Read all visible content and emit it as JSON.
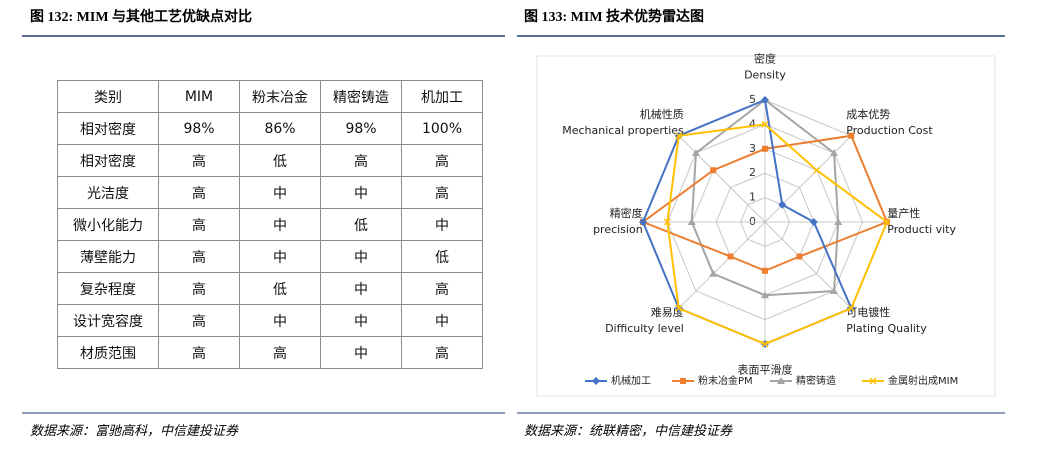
{
  "left": {
    "title": "图 132: MIM 与其他工艺优缺点对比",
    "table": {
      "header": [
        "类别",
        "MIM",
        "粉末冶金",
        "精密铸造",
        "机加工"
      ],
      "rows": [
        [
          "相对密度",
          "98%",
          "86%",
          "98%",
          "100%"
        ],
        [
          "相对密度",
          "高",
          "低",
          "高",
          "高"
        ],
        [
          "光洁度",
          "高",
          "中",
          "中",
          "高"
        ],
        [
          "微小化能力",
          "高",
          "中",
          "低",
          "中"
        ],
        [
          "薄壁能力",
          "高",
          "中",
          "中",
          "低"
        ],
        [
          "复杂程度",
          "高",
          "低",
          "中",
          "高"
        ],
        [
          "设计宽容度",
          "高",
          "中",
          "中",
          "中"
        ],
        [
          "材质范围",
          "高",
          "高",
          "中",
          "高"
        ]
      ]
    },
    "source": "数据来源：富驰高科，中信建投证券"
  },
  "right": {
    "title": "图 133: MIM 技术优势雷达图",
    "source": "数据来源：统联精密，中信建投证券"
  },
  "chart_data": {
    "type": "radar",
    "categories": [
      "密度",
      "成本优势",
      "量产性",
      "可电镀性",
      "表面平滑度",
      "难易度",
      "精密度",
      "机械性质"
    ],
    "categories_en": [
      "Density",
      "Production Cost",
      "Producti vity",
      "Plating Quality",
      null,
      "Difficulty level",
      "precision",
      "Mechanical properties"
    ],
    "series": [
      {
        "name": "机械加工",
        "color": "#4472c4",
        "values": [
          5,
          1,
          2,
          5,
          5,
          5,
          5,
          5
        ]
      },
      {
        "name": "粉末冶金PM",
        "color": "#ed7d31",
        "values": [
          3,
          5,
          5,
          2,
          2,
          2,
          5,
          3
        ]
      },
      {
        "name": "精密铸造",
        "color": "#a5a5a5",
        "values": [
          5,
          4,
          3,
          4,
          3,
          3,
          3,
          4
        ]
      },
      {
        "name": "金属射出成MIM",
        "color": "#ffc000",
        "values": [
          4,
          3,
          5,
          5,
          5,
          5,
          4,
          5
        ]
      }
    ],
    "rlim": [
      0,
      5
    ],
    "rticks": [
      0,
      1,
      2,
      3,
      4,
      5
    ],
    "grid": true,
    "legend": "bottom"
  }
}
